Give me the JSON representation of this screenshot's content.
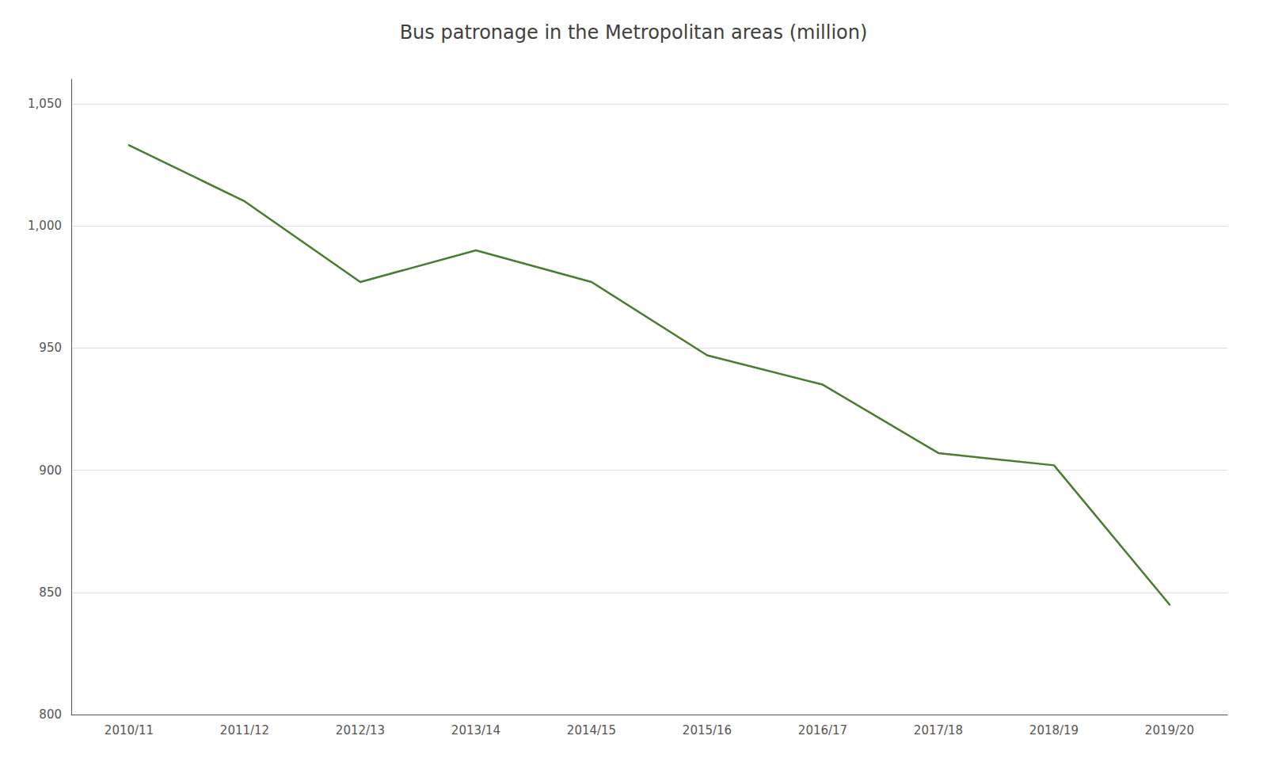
{
  "chart_data": {
    "type": "line",
    "title": "Bus patronage in the Metropolitan areas (million)",
    "categories": [
      "2010/11",
      "2011/12",
      "2012/13",
      "2013/14",
      "2014/15",
      "2015/16",
      "2016/17",
      "2017/18",
      "2018/19",
      "2019/20"
    ],
    "values": [
      1033,
      1010,
      977,
      990,
      977,
      947,
      935,
      907,
      902,
      845
    ],
    "color": "#4a7c2f",
    "ylim": [
      800,
      1060
    ],
    "yticks": [
      800,
      850,
      900,
      950,
      {
        "value": 1000,
        "label": "1,000"
      },
      {
        "value": 1050,
        "label": "1,050"
      }
    ],
    "grid": true
  }
}
